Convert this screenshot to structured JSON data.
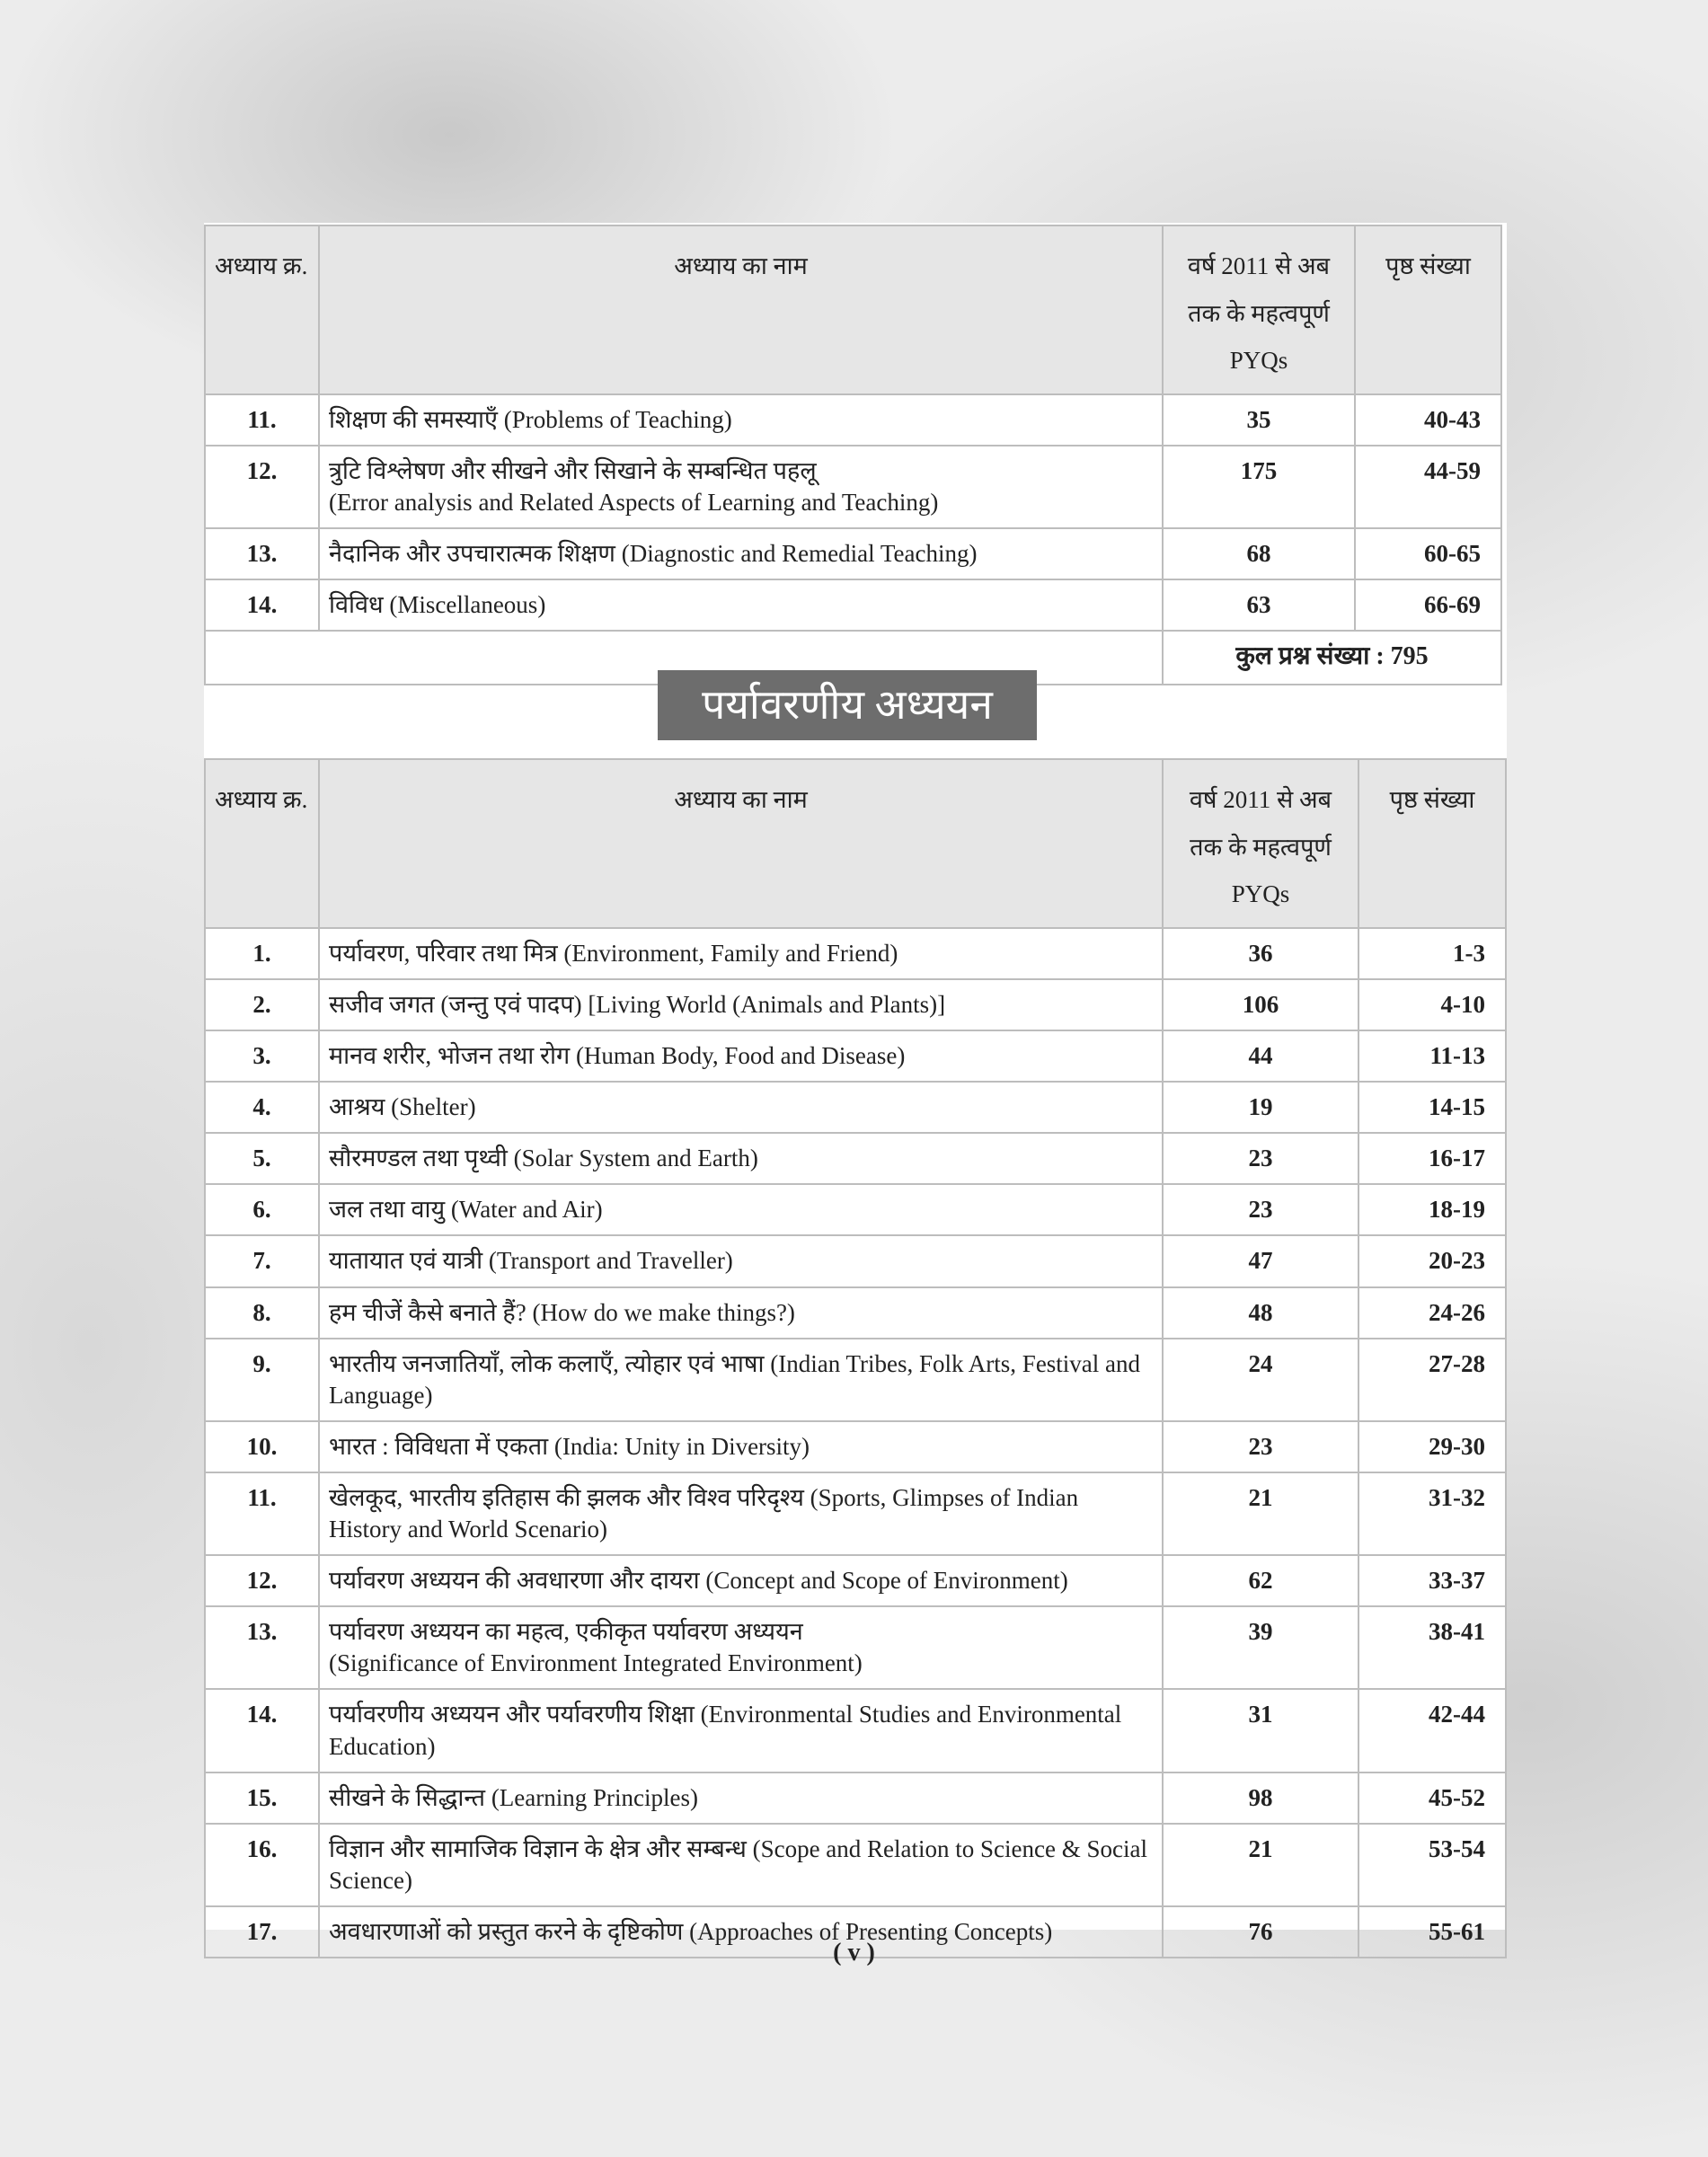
{
  "header": {
    "col_no": "अध्याय क्र.",
    "col_name": "अध्याय का नाम",
    "col_pyq": "वर्ष 2011 से अब तक के महत्वपूर्ण PYQs",
    "col_page": "पृष्ठ संख्या"
  },
  "table1": {
    "rows": [
      {
        "no": "11.",
        "name": "शिक्षण की समस्याएँ (Problems of Teaching)",
        "pyq": "35",
        "page": "40-43"
      },
      {
        "no": "12.",
        "name": "त्रुटि विश्लेषण और सीखने और सिखाने के सम्बन्धित पहलू",
        "name2": "(Error analysis and Related Aspects of Learning and Teaching)",
        "pyq": "175",
        "page": "44-59"
      },
      {
        "no": "13.",
        "name": "नैदानिक और उपचारात्मक शिक्षण (Diagnostic and Remedial Teaching)",
        "pyq": "68",
        "page": "60-65"
      },
      {
        "no": "14.",
        "name": "विविध (Miscellaneous)",
        "pyq": "63",
        "page": "66-69"
      }
    ],
    "total": "कुल प्रश्न संख्या : 795"
  },
  "section_title": "पर्यावरणीय अध्ययन",
  "table2": {
    "rows": [
      {
        "no": "1.",
        "name": "पर्यावरण, परिवार तथा मित्र (Environment, Family and Friend)",
        "pyq": "36",
        "page": "1-3"
      },
      {
        "no": "2.",
        "name": "सजीव जगत (जन्तु एवं पादप) [Living World (Animals and Plants)]",
        "pyq": "106",
        "page": "4-10"
      },
      {
        "no": "3.",
        "name": "मानव शरीर, भोजन तथा रोग (Human Body, Food and Disease)",
        "pyq": "44",
        "page": "11-13"
      },
      {
        "no": "4.",
        "name": "आश्रय (Shelter)",
        "pyq": "19",
        "page": "14-15"
      },
      {
        "no": "5.",
        "name": "सौरमण्डल तथा पृथ्वी (Solar System and Earth)",
        "pyq": "23",
        "page": "16-17"
      },
      {
        "no": "6.",
        "name": "जल तथा वायु (Water and Air)",
        "pyq": "23",
        "page": "18-19"
      },
      {
        "no": "7.",
        "name": "यातायात एवं यात्री (Transport and Traveller)",
        "pyq": "47",
        "page": "20-23"
      },
      {
        "no": "8.",
        "name": "हम चीजें कैसे बनाते हैं? (How do we make things?)",
        "pyq": "48",
        "page": "24-26"
      },
      {
        "no": "9.",
        "name": "भारतीय जनजातियाँ, लोक कलाएँ, त्योहार एवं भाषा (Indian Tribes, Folk Arts, Festival and Language)",
        "pyq": "24",
        "page": "27-28"
      },
      {
        "no": "10.",
        "name": "भारत : विविधता में एकता (India: Unity in Diversity)",
        "pyq": "23",
        "page": "29-30"
      },
      {
        "no": "11.",
        "name": "खेलकूद, भारतीय इतिहास की झलक और विश्व परिदृश्य (Sports, Glimpses of Indian History and World Scenario)",
        "pyq": "21",
        "page": "31-32"
      },
      {
        "no": "12.",
        "name": "पर्यावरण अध्ययन की अवधारणा और दायरा (Concept and Scope of Environment)",
        "pyq": "62",
        "page": "33-37"
      },
      {
        "no": "13.",
        "name": "पर्यावरण अध्ययन का महत्व, एकीकृत पर्यावरण अध्ययन",
        "name2": "(Significance of Environment Integrated Environment)",
        "pyq": "39",
        "page": "38-41"
      },
      {
        "no": "14.",
        "name": "पर्यावरणीय अध्ययन और पर्यावरणीय शिक्षा (Environmental Studies and Environmental Education)",
        "pyq": "31",
        "page": "42-44"
      },
      {
        "no": "15.",
        "name": "सीखने के सिद्धान्त (Learning Principles)",
        "pyq": "98",
        "page": "45-52"
      },
      {
        "no": "16.",
        "name": "विज्ञान और सामाजिक विज्ञान के क्षेत्र और सम्बन्ध (Scope and Relation to Science & Social Science)",
        "pyq": "21",
        "page": "53-54"
      },
      {
        "no": "17.",
        "name": "अवधारणाओं को प्रस्तुत करने के दृष्टिकोण (Approaches of Presenting Concepts)",
        "pyq": "76",
        "page": "55-61"
      }
    ]
  },
  "page_number": "( v )"
}
